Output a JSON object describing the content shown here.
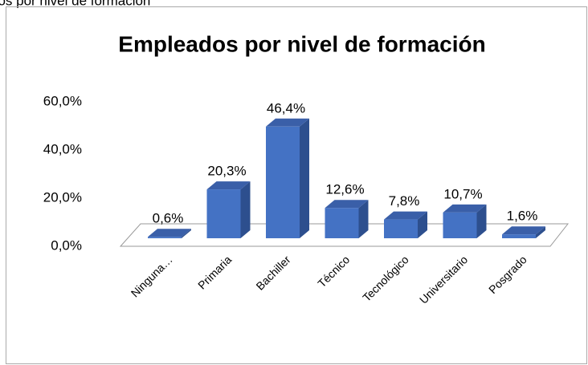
{
  "caption": "dos por nivel de formación",
  "chart_data": {
    "type": "bar3d",
    "title": "Empleados por nivel de formación",
    "categories": [
      "Ninguna…",
      "Primaria",
      "Bachiller",
      "Técnico",
      "Tecnológico",
      "Universitario",
      "Posgrado"
    ],
    "values": [
      0.6,
      20.3,
      46.4,
      12.6,
      7.8,
      10.7,
      1.6
    ],
    "value_labels": [
      "0,6%",
      "20,3%",
      "46,4%",
      "12,6%",
      "7,8%",
      "10,7%",
      "1,6%"
    ],
    "color": "#4472c4",
    "ylim": [
      0,
      60
    ],
    "yticks": [
      {
        "value": 0,
        "label": "0,0%"
      },
      {
        "value": 20,
        "label": "20,0%"
      },
      {
        "value": 40,
        "label": "40,0%"
      },
      {
        "value": 60,
        "label": "60,0%"
      }
    ]
  }
}
